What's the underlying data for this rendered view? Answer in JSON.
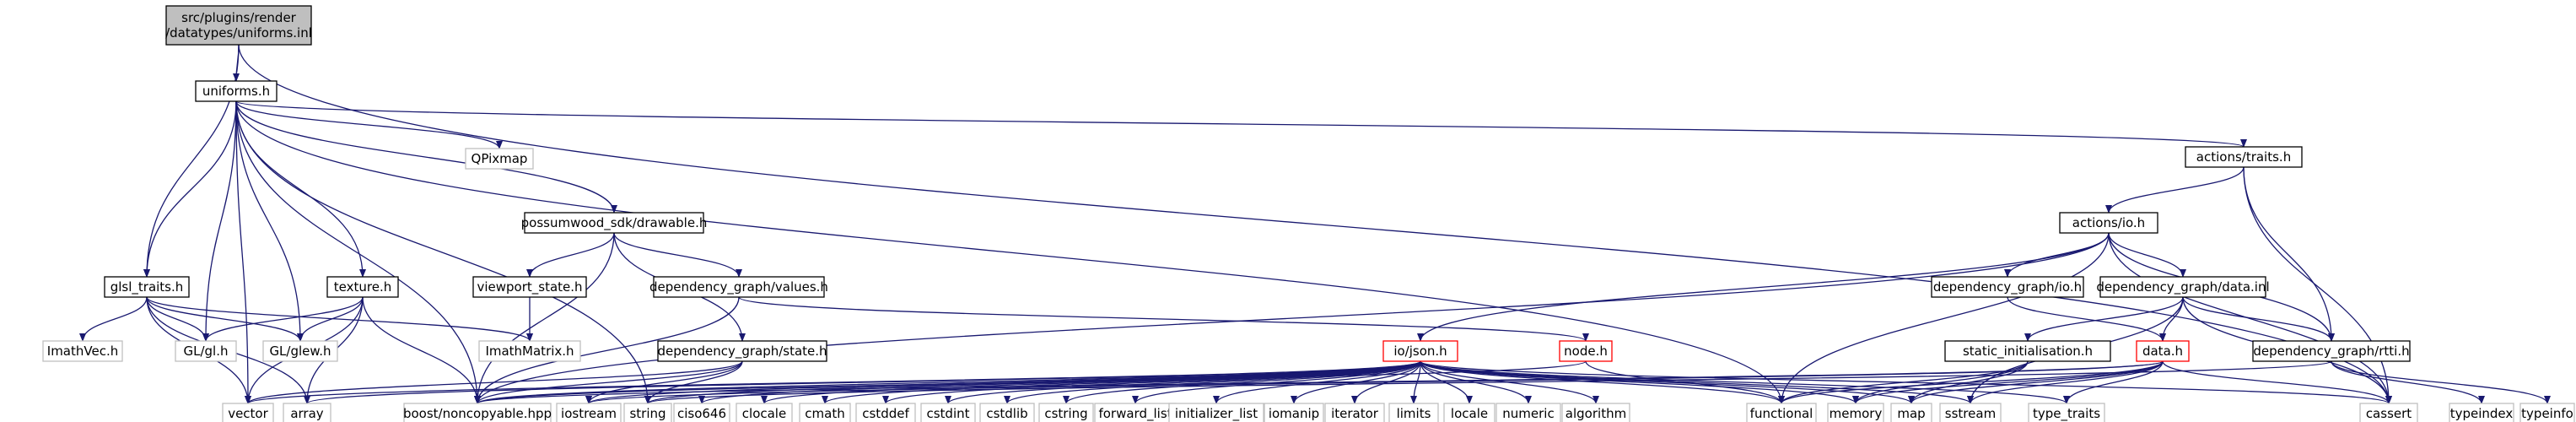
{
  "colors": {
    "edge": "#191970",
    "border": "#000000",
    "border_external": "#bfbfbf",
    "border_truncated": "#ff0000",
    "root_fill": "#bfbfbf",
    "fill": "#ffffff",
    "text": "#000000",
    "text_external": "#7f7f7f"
  },
  "nodes": [
    {
      "id": "root",
      "lines": [
        "src/plugins/render",
        "/datatypes/uniforms.inl"
      ],
      "kind": "root"
    },
    {
      "id": "uniforms_h",
      "lines": [
        "uniforms.h"
      ],
      "kind": "normal"
    },
    {
      "id": "glsl_traits_h",
      "lines": [
        "glsl_traits.h"
      ],
      "kind": "normal"
    },
    {
      "id": "cassert",
      "lines": [
        "cassert"
      ],
      "kind": "external"
    },
    {
      "id": "qpixmap",
      "lines": [
        "QPixmap"
      ],
      "kind": "external"
    },
    {
      "id": "drawable_h",
      "lines": [
        "possumwood_sdk/drawable.h"
      ],
      "kind": "normal"
    },
    {
      "id": "actions_traits_h",
      "lines": [
        "actions/traits.h"
      ],
      "kind": "normal"
    },
    {
      "id": "actions_io_h",
      "lines": [
        "actions/io.h"
      ],
      "kind": "normal"
    },
    {
      "id": "viewport_state_h",
      "lines": [
        "viewport_state.h"
      ],
      "kind": "normal"
    },
    {
      "id": "values_h",
      "lines": [
        "dependency_graph/values.h"
      ],
      "kind": "normal"
    },
    {
      "id": "texture_h",
      "lines": [
        "texture.h"
      ],
      "kind": "normal"
    },
    {
      "id": "dg_io_h",
      "lines": [
        "dependency_graph/io.h"
      ],
      "kind": "normal"
    },
    {
      "id": "data_inl",
      "lines": [
        "dependency_graph/data.inl"
      ],
      "kind": "normal"
    },
    {
      "id": "imathvec_h",
      "lines": [
        "ImathVec.h"
      ],
      "kind": "external"
    },
    {
      "id": "gl_gl_h",
      "lines": [
        "GL/gl.h"
      ],
      "kind": "external"
    },
    {
      "id": "gl_glew_h",
      "lines": [
        "GL/glew.h"
      ],
      "kind": "external"
    },
    {
      "id": "imathmatrix_h",
      "lines": [
        "ImathMatrix.h"
      ],
      "kind": "external"
    },
    {
      "id": "state_h",
      "lines": [
        "dependency_graph/state.h"
      ],
      "kind": "normal"
    },
    {
      "id": "io_json_h",
      "lines": [
        "io/json.h"
      ],
      "kind": "truncated"
    },
    {
      "id": "node_h",
      "lines": [
        "node.h"
      ],
      "kind": "truncated"
    },
    {
      "id": "static_init_h",
      "lines": [
        "static_initialisation.h"
      ],
      "kind": "normal"
    },
    {
      "id": "data_h",
      "lines": [
        "data.h"
      ],
      "kind": "truncated"
    },
    {
      "id": "rtti_h",
      "lines": [
        "dependency_graph/rtti.h"
      ],
      "kind": "normal"
    },
    {
      "id": "vector",
      "lines": [
        "vector"
      ],
      "kind": "external"
    },
    {
      "id": "array",
      "lines": [
        "array"
      ],
      "kind": "external"
    },
    {
      "id": "noncopyable",
      "lines": [
        "boost/noncopyable.hpp"
      ],
      "kind": "external"
    },
    {
      "id": "iostream",
      "lines": [
        "iostream"
      ],
      "kind": "external"
    },
    {
      "id": "string",
      "lines": [
        "string"
      ],
      "kind": "external"
    },
    {
      "id": "ciso646",
      "lines": [
        "ciso646"
      ],
      "kind": "external"
    },
    {
      "id": "clocale",
      "lines": [
        "clocale"
      ],
      "kind": "external"
    },
    {
      "id": "cmath",
      "lines": [
        "cmath"
      ],
      "kind": "external"
    },
    {
      "id": "cstddef",
      "lines": [
        "cstddef"
      ],
      "kind": "external"
    },
    {
      "id": "cstdint",
      "lines": [
        "cstdint"
      ],
      "kind": "external"
    },
    {
      "id": "cstdlib",
      "lines": [
        "cstdlib"
      ],
      "kind": "external"
    },
    {
      "id": "cstring",
      "lines": [
        "cstring"
      ],
      "kind": "external"
    },
    {
      "id": "forward_list",
      "lines": [
        "forward_list"
      ],
      "kind": "external"
    },
    {
      "id": "initializer_list",
      "lines": [
        "initializer_list"
      ],
      "kind": "external"
    },
    {
      "id": "iomanip",
      "lines": [
        "iomanip"
      ],
      "kind": "external"
    },
    {
      "id": "iterator",
      "lines": [
        "iterator"
      ],
      "kind": "external"
    },
    {
      "id": "limits",
      "lines": [
        "limits"
      ],
      "kind": "external"
    },
    {
      "id": "locale",
      "lines": [
        "locale"
      ],
      "kind": "external"
    },
    {
      "id": "numeric",
      "lines": [
        "numeric"
      ],
      "kind": "external"
    },
    {
      "id": "algorithm",
      "lines": [
        "algorithm"
      ],
      "kind": "external"
    },
    {
      "id": "functional",
      "lines": [
        "functional"
      ],
      "kind": "external"
    },
    {
      "id": "memory",
      "lines": [
        "memory"
      ],
      "kind": "external"
    },
    {
      "id": "map",
      "lines": [
        "map"
      ],
      "kind": "external"
    },
    {
      "id": "sstream",
      "lines": [
        "sstream"
      ],
      "kind": "external"
    },
    {
      "id": "type_traits",
      "lines": [
        "type_traits"
      ],
      "kind": "external"
    },
    {
      "id": "typeindex",
      "lines": [
        "typeindex"
      ],
      "kind": "external"
    },
    {
      "id": "typeinfo",
      "lines": [
        "typeinfo"
      ],
      "kind": "external"
    }
  ],
  "edges": [
    [
      "root",
      "uniforms_h"
    ],
    [
      "root",
      "glsl_traits_h"
    ],
    [
      "root",
      "cassert"
    ],
    [
      "uniforms_h",
      "qpixmap"
    ],
    [
      "uniforms_h",
      "drawable_h"
    ],
    [
      "uniforms_h",
      "actions_traits_h"
    ],
    [
      "uniforms_h",
      "texture_h"
    ],
    [
      "uniforms_h",
      "glsl_traits_h"
    ],
    [
      "uniforms_h",
      "gl_gl_h"
    ],
    [
      "uniforms_h",
      "gl_glew_h"
    ],
    [
      "uniforms_h",
      "noncopyable"
    ],
    [
      "uniforms_h",
      "vector"
    ],
    [
      "uniforms_h",
      "string"
    ],
    [
      "uniforms_h",
      "functional"
    ],
    [
      "glsl_traits_h",
      "imathvec_h"
    ],
    [
      "glsl_traits_h",
      "gl_gl_h"
    ],
    [
      "glsl_traits_h",
      "gl_glew_h"
    ],
    [
      "glsl_traits_h",
      "imathmatrix_h"
    ],
    [
      "glsl_traits_h",
      "vector"
    ],
    [
      "glsl_traits_h",
      "array"
    ],
    [
      "texture_h",
      "gl_gl_h"
    ],
    [
      "texture_h",
      "gl_glew_h"
    ],
    [
      "texture_h",
      "noncopyable"
    ],
    [
      "texture_h",
      "vector"
    ],
    [
      "texture_h",
      "array"
    ],
    [
      "drawable_h",
      "viewport_state_h"
    ],
    [
      "drawable_h",
      "values_h"
    ],
    [
      "drawable_h",
      "state_h"
    ],
    [
      "drawable_h",
      "noncopyable"
    ],
    [
      "viewport_state_h",
      "imathmatrix_h"
    ],
    [
      "values_h",
      "node_h"
    ],
    [
      "values_h",
      "noncopyable"
    ],
    [
      "state_h",
      "vector"
    ],
    [
      "state_h",
      "iostream"
    ],
    [
      "state_h",
      "string"
    ],
    [
      "state_h",
      "noncopyable"
    ],
    [
      "actions_traits_h",
      "actions_io_h"
    ],
    [
      "actions_traits_h",
      "rtti_h"
    ],
    [
      "actions_traits_h",
      "cassert"
    ],
    [
      "actions_io_h",
      "io_json_h"
    ],
    [
      "actions_io_h",
      "dg_io_h"
    ],
    [
      "actions_io_h",
      "data_inl"
    ],
    [
      "actions_io_h",
      "rtti_h"
    ],
    [
      "actions_io_h",
      "functional"
    ],
    [
      "actions_io_h",
      "noncopyable"
    ],
    [
      "actions_io_h",
      "cassert"
    ],
    [
      "dg_io_h",
      "data_h"
    ],
    [
      "data_inl",
      "static_init_h"
    ],
    [
      "data_inl",
      "data_h"
    ],
    [
      "data_inl",
      "rtti_h"
    ],
    [
      "data_inl",
      "sstream"
    ],
    [
      "data_inl",
      "cassert"
    ],
    [
      "static_init_h",
      "functional"
    ],
    [
      "static_init_h",
      "memory"
    ],
    [
      "static_init_h",
      "map"
    ],
    [
      "data_h",
      "functional"
    ],
    [
      "data_h",
      "memory"
    ],
    [
      "data_h",
      "map"
    ],
    [
      "data_h",
      "sstream"
    ],
    [
      "data_h",
      "type_traits"
    ],
    [
      "data_h",
      "cassert"
    ],
    [
      "data_h",
      "iostream"
    ],
    [
      "data_h",
      "noncopyable"
    ],
    [
      "rtti_h",
      "typeindex"
    ],
    [
      "rtti_h",
      "typeinfo"
    ],
    [
      "rtti_h",
      "string"
    ],
    [
      "node_h",
      "noncopyable"
    ],
    [
      "node_h",
      "functional"
    ],
    [
      "io_json_h",
      "vector"
    ],
    [
      "io_json_h",
      "array"
    ],
    [
      "io_json_h",
      "noncopyable"
    ],
    [
      "io_json_h",
      "iostream"
    ],
    [
      "io_json_h",
      "string"
    ],
    [
      "io_json_h",
      "ciso646"
    ],
    [
      "io_json_h",
      "clocale"
    ],
    [
      "io_json_h",
      "cmath"
    ],
    [
      "io_json_h",
      "cstddef"
    ],
    [
      "io_json_h",
      "cstdint"
    ],
    [
      "io_json_h",
      "cstdlib"
    ],
    [
      "io_json_h",
      "cstring"
    ],
    [
      "io_json_h",
      "forward_list"
    ],
    [
      "io_json_h",
      "initializer_list"
    ],
    [
      "io_json_h",
      "iomanip"
    ],
    [
      "io_json_h",
      "iterator"
    ],
    [
      "io_json_h",
      "limits"
    ],
    [
      "io_json_h",
      "locale"
    ],
    [
      "io_json_h",
      "numeric"
    ],
    [
      "io_json_h",
      "algorithm"
    ],
    [
      "io_json_h",
      "functional"
    ],
    [
      "io_json_h",
      "memory"
    ],
    [
      "io_json_h",
      "map"
    ],
    [
      "io_json_h",
      "sstream"
    ],
    [
      "io_json_h",
      "type_traits"
    ],
    [
      "io_json_h",
      "cassert"
    ]
  ]
}
